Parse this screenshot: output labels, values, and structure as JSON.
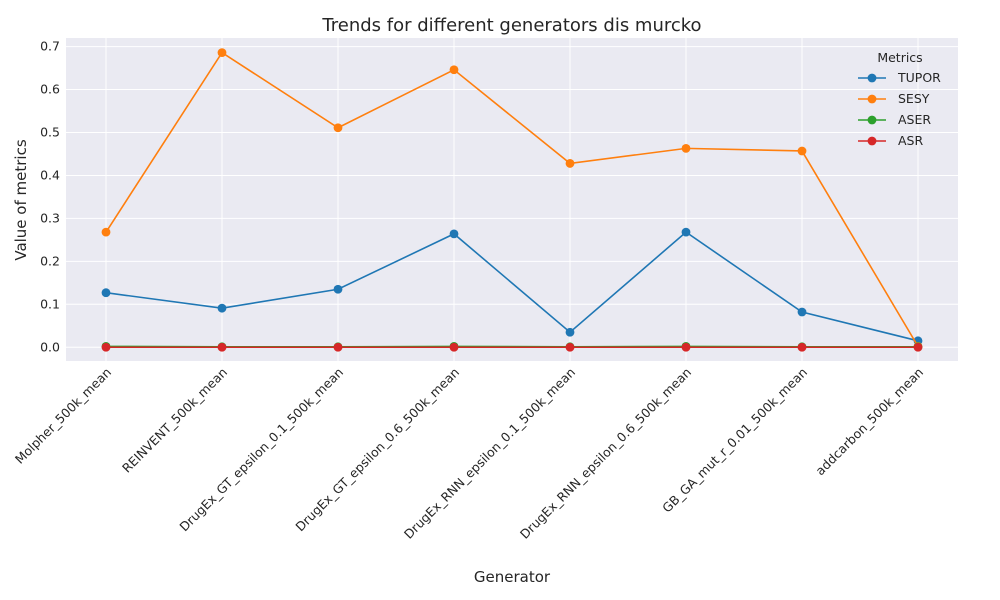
{
  "chart_data": {
    "type": "line",
    "title": "Trends for different generators dis murcko",
    "xlabel": "Generator",
    "ylabel": "Value of metrics",
    "categories": [
      "Molpher_500k_mean",
      "REINVENT_500k_mean",
      "DrugEx_GT_epsilon_0.1_500k_mean",
      "DrugEx_GT_epsilon_0.6_500k_mean",
      "DrugEx_RNN_epsilon_0.1_500k_mean",
      "DrugEx_RNN_epsilon_0.6_500k_mean",
      "GB_GA_mut_r_0.01_500k_mean",
      "addcarbon_500k_mean"
    ],
    "series": [
      {
        "name": "TUPOR",
        "color": "#1f77b4",
        "values": [
          0.127,
          0.091,
          0.135,
          0.264,
          0.035,
          0.268,
          0.082,
          0.015
        ]
      },
      {
        "name": "SESY",
        "color": "#ff7f0e",
        "values": [
          0.268,
          0.686,
          0.511,
          0.646,
          0.428,
          0.463,
          0.457,
          0.002
        ]
      },
      {
        "name": "ASER",
        "color": "#2ca02c",
        "values": [
          0.002,
          0.001,
          0.001,
          0.002,
          0.001,
          0.002,
          0.001,
          0.001
        ]
      },
      {
        "name": "ASR",
        "color": "#d62728",
        "values": [
          0.0,
          0.0,
          0.0,
          0.0,
          0.0,
          0.0,
          0.0,
          0.0
        ]
      }
    ],
    "ylim": [
      -0.032,
      0.72
    ],
    "yticks": [
      0.0,
      0.1,
      0.2,
      0.3,
      0.4,
      0.5,
      0.6,
      0.7
    ],
    "ytick_labels": [
      "0.0",
      "0.1",
      "0.2",
      "0.3",
      "0.4",
      "0.5",
      "0.6",
      "0.7"
    ],
    "grid": true,
    "legend": {
      "title": "Metrics",
      "placement": "top-right"
    },
    "plot_background": "#eaeaf2",
    "grid_color": "#ffffff"
  }
}
